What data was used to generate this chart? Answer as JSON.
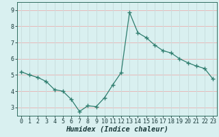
{
  "x": [
    0,
    1,
    2,
    3,
    4,
    5,
    6,
    7,
    8,
    9,
    10,
    11,
    12,
    13,
    14,
    15,
    16,
    17,
    18,
    19,
    20,
    21,
    22,
    23
  ],
  "y": [
    5.2,
    5.0,
    4.85,
    4.6,
    4.1,
    4.0,
    3.5,
    2.75,
    3.1,
    3.05,
    3.6,
    4.4,
    5.15,
    8.85,
    7.6,
    7.3,
    6.85,
    6.5,
    6.35,
    6.0,
    5.75,
    5.55,
    5.4,
    4.75
  ],
  "line_color": "#2e7d6e",
  "marker": "+",
  "marker_size": 4,
  "bg_color": "#d9f0f0",
  "grid_color_h": "#e8b8b8",
  "grid_color_v": "#c8dede",
  "xlabel": "Humidex (Indice chaleur)",
  "xlim": [
    -0.5,
    23.5
  ],
  "ylim": [
    2.5,
    9.5
  ],
  "yticks": [
    3,
    4,
    5,
    6,
    7,
    8,
    9
  ],
  "xticks": [
    0,
    1,
    2,
    3,
    4,
    5,
    6,
    7,
    8,
    9,
    10,
    11,
    12,
    13,
    14,
    15,
    16,
    17,
    18,
    19,
    20,
    21,
    22,
    23
  ],
  "tick_fontsize": 6,
  "xlabel_fontsize": 7.5,
  "axis_color": "#2e6b5e",
  "label_color": "#1a3a3a"
}
